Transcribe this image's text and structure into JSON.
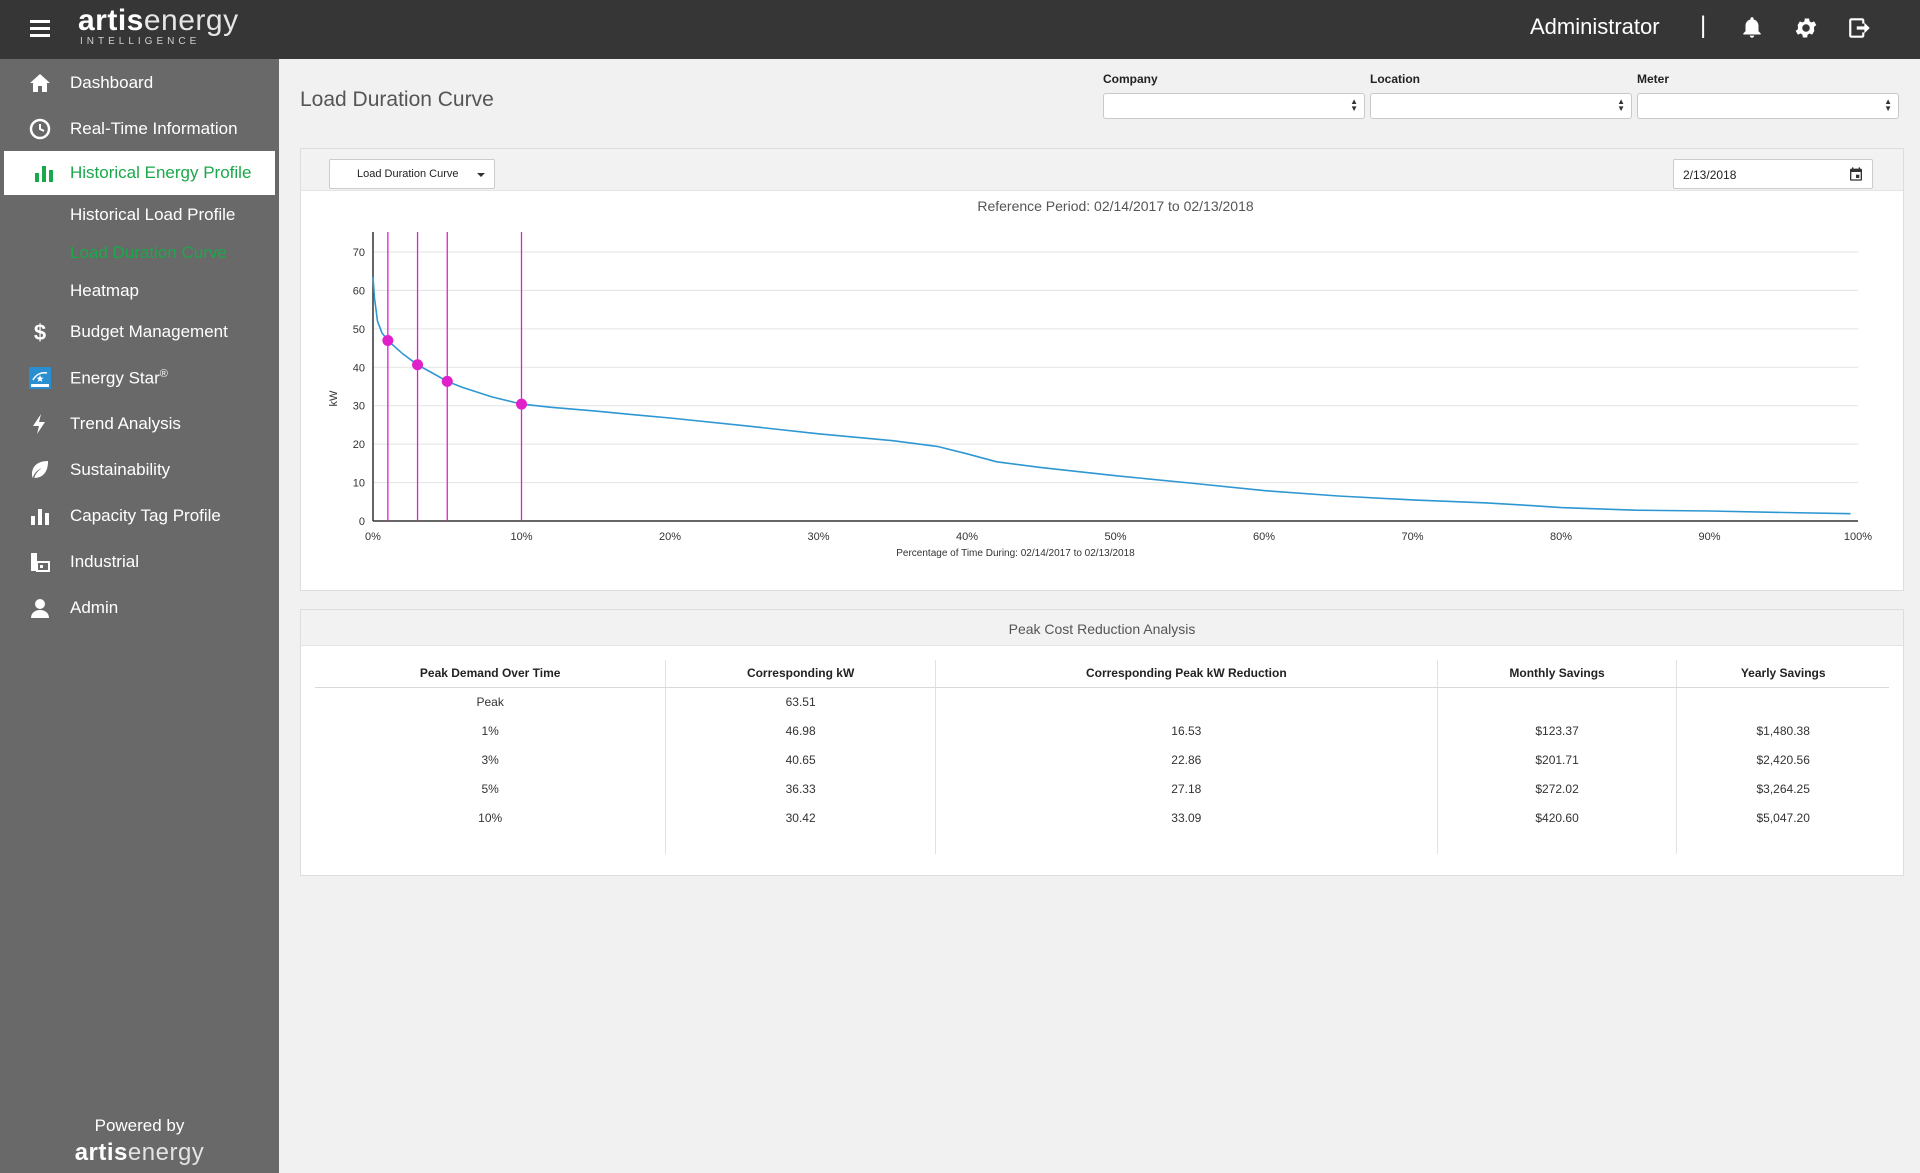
{
  "app": {
    "logo_bold": "artis",
    "logo_rest": "energy",
    "logo_sub": "INTELLIGENCE",
    "user": "Administrator",
    "separator": "|",
    "icons": [
      "bell-icon",
      "gear-icon",
      "logout-icon"
    ]
  },
  "sidebar": {
    "items": [
      {
        "label": "Dashboard",
        "icon": "home-icon"
      },
      {
        "label": "Real-Time Information",
        "icon": "clock-icon"
      },
      {
        "label": "Historical Energy Profile",
        "icon": "bar-chart-icon",
        "active": true
      },
      {
        "label": "Budget Management",
        "icon": "dollar-icon"
      },
      {
        "label": "Energy Star",
        "superscript": "®",
        "icon": "energy-star-icon"
      },
      {
        "label": "Trend Analysis",
        "icon": "lightning-icon"
      },
      {
        "label": "Sustainability",
        "icon": "leaf-icon"
      },
      {
        "label": "Capacity Tag Profile",
        "icon": "bar-chart-icon"
      },
      {
        "label": "Industrial",
        "icon": "factory-icon"
      },
      {
        "label": "Admin",
        "icon": "user-icon"
      }
    ],
    "subitems": [
      {
        "label": "Historical Load Profile"
      },
      {
        "label": "Load Duration Curve",
        "active": true
      },
      {
        "label": "Heatmap"
      }
    ],
    "powered_by": "Powered by",
    "footer_logo_bold": "artis",
    "footer_logo_rest": "energy"
  },
  "page": {
    "title": "Load Duration Curve"
  },
  "filters": {
    "company": {
      "label": "Company",
      "value": ""
    },
    "location": {
      "label": "Location",
      "value": ""
    },
    "meter": {
      "label": "Meter",
      "value": ""
    }
  },
  "toolbar": {
    "view_select": "Load Duration Curve",
    "date": "2/13/2018"
  },
  "colors": {
    "accent_green": "#1ba84a",
    "curve": "#2e97d2",
    "marker": "#e020c8",
    "topbar": "#363636",
    "sidebar": "#696969"
  },
  "chart_data": {
    "type": "line",
    "title": "Reference Period: 02/14/2017 to 02/13/2018",
    "xlabel": "Percentage of Time During: 02/14/2017 to 02/13/2018",
    "ylabel": "kW",
    "xlim": [
      0,
      100
    ],
    "ylim": [
      0,
      70
    ],
    "x_ticks": [
      "0%",
      "10%",
      "20%",
      "30%",
      "40%",
      "50%",
      "60%",
      "70%",
      "80%",
      "90%",
      "100%"
    ],
    "y_ticks": [
      "0",
      "10",
      "20",
      "30",
      "40",
      "50",
      "60",
      "70"
    ],
    "grid": true,
    "series": [
      {
        "x": [
          0,
          0.1,
          0.3,
          0.6,
          1,
          2,
          3,
          4,
          5,
          6,
          8,
          10,
          12,
          15,
          18,
          20,
          25,
          30,
          35,
          38,
          40,
          42,
          45,
          50,
          55,
          60,
          65,
          70,
          75,
          78,
          80,
          85,
          90,
          95,
          99.5
        ],
        "y": [
          63.51,
          58,
          52,
          49,
          46.98,
          43.5,
          40.65,
          38.5,
          36.33,
          34.8,
          32.3,
          30.42,
          29.6,
          28.6,
          27.5,
          26.8,
          24.8,
          22.7,
          20.9,
          19.4,
          17.5,
          15.4,
          13.9,
          11.8,
          9.9,
          7.9,
          6.5,
          5.5,
          4.7,
          4.0,
          3.5,
          2.8,
          2.6,
          2.2,
          1.9
        ]
      }
    ],
    "markers": [
      {
        "x": 1,
        "y": 46.98
      },
      {
        "x": 3,
        "y": 40.65
      },
      {
        "x": 5,
        "y": 36.33
      },
      {
        "x": 10,
        "y": 30.42
      }
    ]
  },
  "analysis": {
    "title": "Peak Cost Reduction Analysis",
    "columns": [
      "Peak Demand Over Time",
      "Corresponding kW",
      "Corresponding Peak kW Reduction",
      "Monthly Savings",
      "Yearly Savings"
    ],
    "rows": [
      [
        "Peak",
        "63.51",
        "",
        "",
        ""
      ],
      [
        "1%",
        "46.98",
        "16.53",
        "$123.37",
        "$1,480.38"
      ],
      [
        "3%",
        "40.65",
        "22.86",
        "$201.71",
        "$2,420.56"
      ],
      [
        "5%",
        "36.33",
        "27.18",
        "$272.02",
        "$3,264.25"
      ],
      [
        "10%",
        "30.42",
        "33.09",
        "$420.60",
        "$5,047.20"
      ]
    ]
  }
}
